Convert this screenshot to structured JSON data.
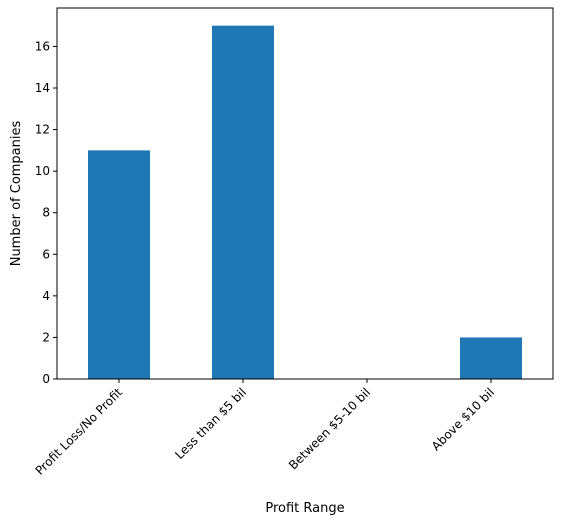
{
  "chart_data": {
    "type": "bar",
    "title": "",
    "xlabel": "Profit Range",
    "ylabel": "Number of Companies",
    "categories": [
      "Profit Loss/No Profit",
      "Less than $5 bil",
      "Between $5-10 bil",
      "Above $10 bil"
    ],
    "values": [
      11,
      17,
      0,
      2
    ],
    "ylim": [
      0,
      17.85
    ],
    "yticks": [
      0,
      2,
      4,
      6,
      8,
      10,
      12,
      14,
      16
    ],
    "ytick_labels": [
      "0",
      "2",
      "4",
      "6",
      "8",
      "10",
      "12",
      "14",
      "16"
    ],
    "grid": false,
    "legend": "none",
    "bar_color": "#1f77b4"
  }
}
